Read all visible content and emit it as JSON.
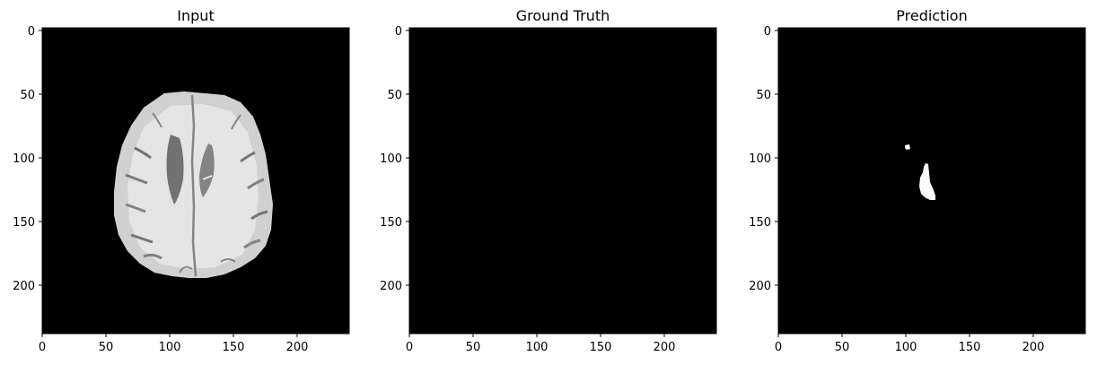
{
  "panels": [
    {
      "title": "Input",
      "image": "brain-mri-axial-slice",
      "content": "grayscale axial brain scan",
      "x_ticks": [
        "0",
        "50",
        "100",
        "150",
        "200"
      ],
      "y_ticks": [
        "0",
        "50",
        "100",
        "150",
        "200"
      ]
    },
    {
      "title": "Ground Truth",
      "image": "empty-mask",
      "content": "all black",
      "x_ticks": [
        "0",
        "50",
        "100",
        "150",
        "200"
      ],
      "y_ticks": [
        "0",
        "50",
        "100",
        "150",
        "200"
      ]
    },
    {
      "title": "Prediction",
      "image": "predicted-mask",
      "content": "two small white regions",
      "x_ticks": [
        "0",
        "50",
        "100",
        "150",
        "200"
      ],
      "y_ticks": [
        "0",
        "50",
        "100",
        "150",
        "200"
      ]
    }
  ],
  "colors": {
    "background": "#000000",
    "mask": "#ffffff"
  }
}
